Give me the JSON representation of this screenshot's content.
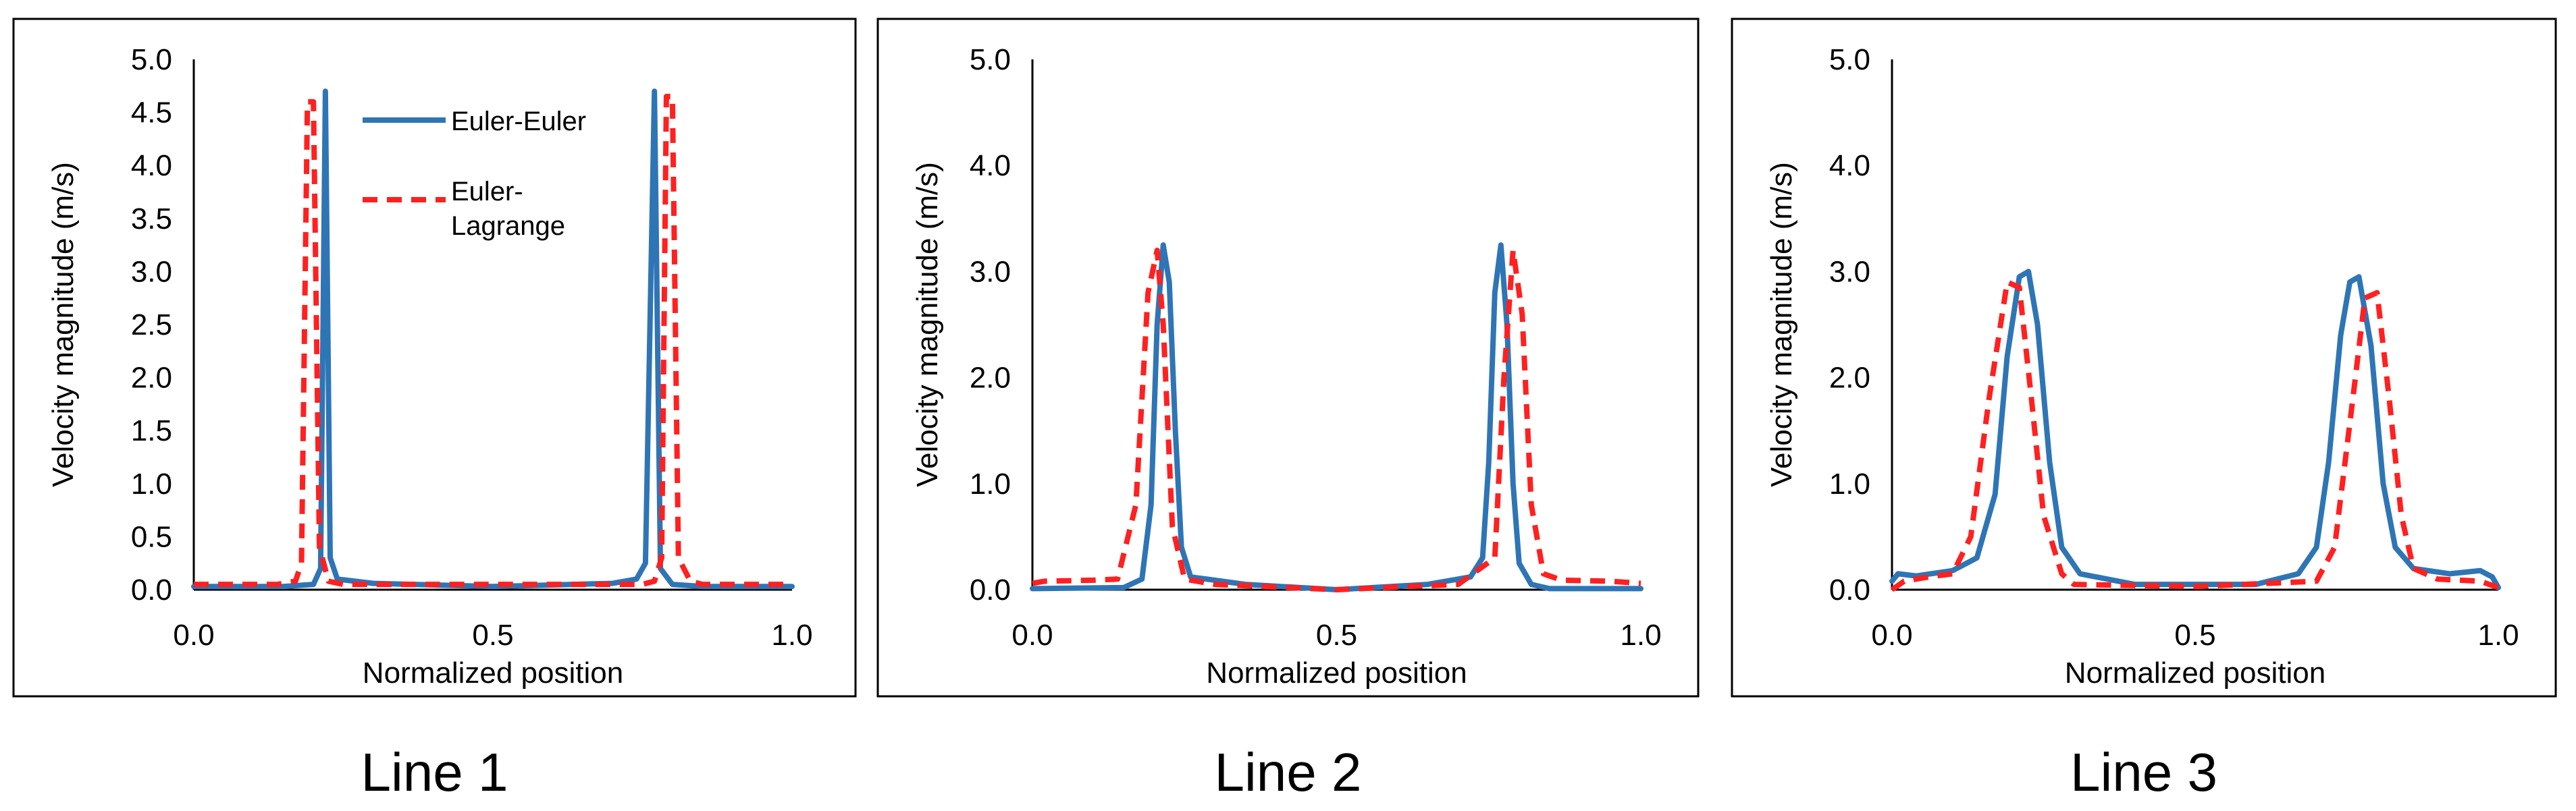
{
  "colors": {
    "euler_euler": "#2E75B6",
    "euler_lagrange": "#FF2020",
    "axis": "#000000",
    "frame": "#000000"
  },
  "legend": {
    "series_1": "Euler-Euler",
    "series_2_line_1": "Euler-",
    "series_2_line_2": "Lagrange"
  },
  "chart_data": [
    {
      "type": "line",
      "caption": "Line 1",
      "xlabel": "Normalized position",
      "ylabel": "Velocity magnitude (m/s)",
      "xlim": [
        0,
        1
      ],
      "ylim": [
        0,
        5
      ],
      "xticks": [
        "0.0",
        "0.5",
        "1.0"
      ],
      "yticks": [
        "0.0",
        "0.5",
        "1.0",
        "1.5",
        "2.0",
        "2.5",
        "3.0",
        "3.5",
        "4.0",
        "4.5",
        "5.0"
      ],
      "series": [
        {
          "name": "Euler-Euler",
          "style": "solid",
          "points": [
            [
              0,
              0.03
            ],
            [
              0.15,
              0.03
            ],
            [
              0.2,
              0.05
            ],
            [
              0.212,
              0.2
            ],
            [
              0.22,
              4.7
            ],
            [
              0.228,
              0.3
            ],
            [
              0.24,
              0.1
            ],
            [
              0.3,
              0.06
            ],
            [
              0.5,
              0.03
            ],
            [
              0.7,
              0.06
            ],
            [
              0.74,
              0.1
            ],
            [
              0.755,
              0.25
            ],
            [
              0.77,
              4.7
            ],
            [
              0.78,
              0.2
            ],
            [
              0.8,
              0.05
            ],
            [
              0.85,
              0.03
            ],
            [
              1,
              0.03
            ]
          ]
        },
        {
          "name": "Euler-Lagrange",
          "style": "dashed",
          "points": [
            [
              0,
              0.05
            ],
            [
              0.14,
              0.05
            ],
            [
              0.17,
              0.08
            ],
            [
              0.18,
              0.25
            ],
            [
              0.19,
              4.6
            ],
            [
              0.2,
              4.6
            ],
            [
              0.21,
              0.4
            ],
            [
              0.225,
              0.08
            ],
            [
              0.25,
              0.05
            ],
            [
              0.75,
              0.05
            ],
            [
              0.77,
              0.08
            ],
            [
              0.782,
              0.3
            ],
            [
              0.79,
              4.65
            ],
            [
              0.8,
              4.65
            ],
            [
              0.81,
              0.3
            ],
            [
              0.83,
              0.08
            ],
            [
              0.85,
              0.05
            ],
            [
              1,
              0.05
            ]
          ]
        }
      ]
    },
    {
      "type": "line",
      "caption": "Line 2",
      "xlabel": "Normalized position",
      "ylabel": "Velocity magnitude (m/s)",
      "xlim": [
        0,
        1
      ],
      "ylim": [
        0,
        5
      ],
      "xticks": [
        "0.0",
        "0.5",
        "1.0"
      ],
      "yticks": [
        "0.0",
        "1.0",
        "2.0",
        "3.0",
        "4.0",
        "5.0"
      ],
      "series": [
        {
          "name": "Euler-Euler",
          "style": "solid",
          "points": [
            [
              0,
              0.01
            ],
            [
              0.15,
              0.02
            ],
            [
              0.18,
              0.1
            ],
            [
              0.195,
              0.8
            ],
            [
              0.205,
              2.5
            ],
            [
              0.215,
              3.25
            ],
            [
              0.225,
              2.9
            ],
            [
              0.235,
              1.5
            ],
            [
              0.245,
              0.4
            ],
            [
              0.26,
              0.12
            ],
            [
              0.35,
              0.05
            ],
            [
              0.5,
              0
            ],
            [
              0.65,
              0.05
            ],
            [
              0.72,
              0.12
            ],
            [
              0.74,
              0.3
            ],
            [
              0.75,
              1.2
            ],
            [
              0.76,
              2.8
            ],
            [
              0.77,
              3.25
            ],
            [
              0.78,
              2.5
            ],
            [
              0.79,
              1.0
            ],
            [
              0.8,
              0.25
            ],
            [
              0.82,
              0.05
            ],
            [
              0.85,
              0.01
            ],
            [
              1,
              0.01
            ]
          ]
        },
        {
          "name": "Euler-Lagrange",
          "style": "dashed",
          "points": [
            [
              0,
              0.06
            ],
            [
              0.02,
              0.08
            ],
            [
              0.1,
              0.09
            ],
            [
              0.14,
              0.1
            ],
            [
              0.17,
              0.8
            ],
            [
              0.19,
              2.8
            ],
            [
              0.205,
              3.2
            ],
            [
              0.215,
              2.5
            ],
            [
              0.23,
              0.6
            ],
            [
              0.25,
              0.1
            ],
            [
              0.3,
              0.05
            ],
            [
              0.5,
              0
            ],
            [
              0.7,
              0.05
            ],
            [
              0.76,
              0.3
            ],
            [
              0.775,
              2.0
            ],
            [
              0.79,
              3.2
            ],
            [
              0.805,
              2.6
            ],
            [
              0.82,
              0.8
            ],
            [
              0.84,
              0.15
            ],
            [
              0.87,
              0.09
            ],
            [
              0.95,
              0.08
            ],
            [
              1,
              0.06
            ]
          ]
        }
      ]
    },
    {
      "type": "line",
      "caption": "Line 3",
      "xlabel": "Normalized position",
      "ylabel": "Velocity magnitude (m/s)",
      "xlim": [
        0,
        1
      ],
      "ylim": [
        0,
        5
      ],
      "xticks": [
        "0.0",
        "0.5",
        "1.0"
      ],
      "yticks": [
        "0.0",
        "1.0",
        "2.0",
        "3.0",
        "4.0",
        "5.0"
      ],
      "series": [
        {
          "name": "Euler-Euler",
          "style": "solid",
          "points": [
            [
              0,
              0.08
            ],
            [
              0.01,
              0.15
            ],
            [
              0.04,
              0.13
            ],
            [
              0.1,
              0.18
            ],
            [
              0.14,
              0.3
            ],
            [
              0.17,
              0.9
            ],
            [
              0.19,
              2.2
            ],
            [
              0.21,
              2.95
            ],
            [
              0.225,
              3.0
            ],
            [
              0.24,
              2.5
            ],
            [
              0.26,
              1.2
            ],
            [
              0.28,
              0.4
            ],
            [
              0.31,
              0.15
            ],
            [
              0.4,
              0.05
            ],
            [
              0.5,
              0.05
            ],
            [
              0.6,
              0.05
            ],
            [
              0.67,
              0.15
            ],
            [
              0.7,
              0.4
            ],
            [
              0.72,
              1.2
            ],
            [
              0.74,
              2.4
            ],
            [
              0.755,
              2.9
            ],
            [
              0.77,
              2.95
            ],
            [
              0.79,
              2.3
            ],
            [
              0.81,
              1.0
            ],
            [
              0.83,
              0.4
            ],
            [
              0.86,
              0.2
            ],
            [
              0.92,
              0.15
            ],
            [
              0.97,
              0.18
            ],
            [
              0.99,
              0.12
            ],
            [
              1,
              0.02
            ]
          ]
        },
        {
          "name": "Euler-Lagrange",
          "style": "dashed",
          "points": [
            [
              0,
              0.0
            ],
            [
              0.02,
              0.08
            ],
            [
              0.06,
              0.12
            ],
            [
              0.1,
              0.15
            ],
            [
              0.13,
              0.5
            ],
            [
              0.16,
              1.8
            ],
            [
              0.19,
              2.9
            ],
            [
              0.21,
              2.85
            ],
            [
              0.23,
              1.8
            ],
            [
              0.25,
              0.7
            ],
            [
              0.28,
              0.15
            ],
            [
              0.3,
              0.05
            ],
            [
              0.5,
              0.03
            ],
            [
              0.7,
              0.08
            ],
            [
              0.73,
              0.4
            ],
            [
              0.76,
              1.8
            ],
            [
              0.78,
              2.75
            ],
            [
              0.8,
              2.8
            ],
            [
              0.82,
              1.8
            ],
            [
              0.84,
              0.7
            ],
            [
              0.86,
              0.2
            ],
            [
              0.9,
              0.1
            ],
            [
              0.97,
              0.08
            ],
            [
              1,
              0.02
            ]
          ]
        }
      ]
    }
  ]
}
